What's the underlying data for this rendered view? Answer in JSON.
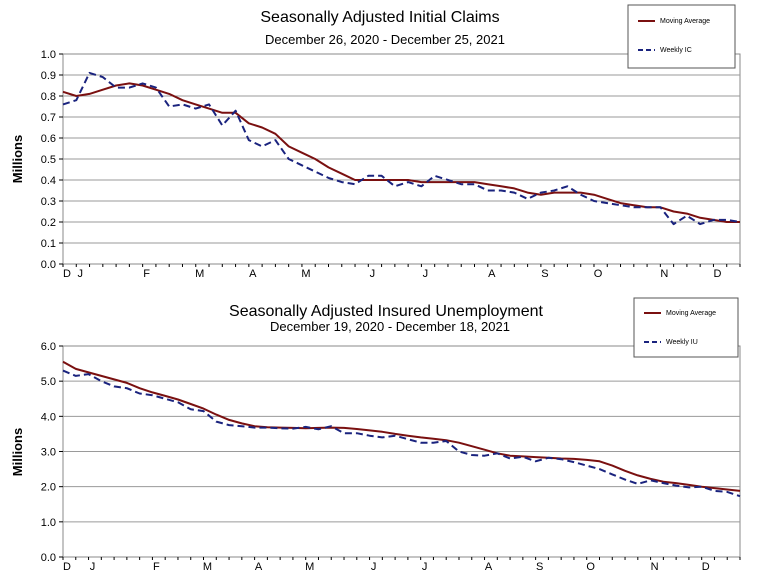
{
  "chart_data": [
    {
      "type": "line",
      "title": "Seasonally Adjusted Initial Claims",
      "subtitle": "December 26, 2020 - December 25, 2021",
      "ylabel": "Millions",
      "xlabel": "",
      "ylim": [
        0,
        1.0
      ],
      "yticks": [
        "0.0",
        "0.1",
        "0.2",
        "0.3",
        "0.4",
        "0.5",
        "0.6",
        "0.7",
        "0.8",
        "0.9",
        "1.0"
      ],
      "xticks": [
        {
          "label": "D",
          "week": 0
        },
        {
          "label": "J",
          "week": 1
        },
        {
          "label": "F",
          "week": 6
        },
        {
          "label": "M",
          "week": 10
        },
        {
          "label": "A",
          "week": 14
        },
        {
          "label": "M",
          "week": 18
        },
        {
          "label": "J",
          "week": 23
        },
        {
          "label": "J",
          "week": 27
        },
        {
          "label": "A",
          "week": 32
        },
        {
          "label": "S",
          "week": 36
        },
        {
          "label": "O",
          "week": 40
        },
        {
          "label": "N",
          "week": 45
        },
        {
          "label": "D",
          "week": 49
        }
      ],
      "grid": true,
      "legend_position": "top-right",
      "series": [
        {
          "name": "Moving Average",
          "color": "#7a1010",
          "style": "solid",
          "values": [
            0.82,
            0.8,
            0.81,
            0.83,
            0.85,
            0.86,
            0.85,
            0.83,
            0.81,
            0.78,
            0.76,
            0.74,
            0.72,
            0.72,
            0.67,
            0.65,
            0.62,
            0.56,
            0.53,
            0.5,
            0.46,
            0.43,
            0.4,
            0.4,
            0.4,
            0.4,
            0.4,
            0.39,
            0.39,
            0.39,
            0.39,
            0.39,
            0.38,
            0.37,
            0.36,
            0.34,
            0.33,
            0.34,
            0.34,
            0.34,
            0.33,
            0.31,
            0.29,
            0.28,
            0.27,
            0.27,
            0.25,
            0.24,
            0.22,
            0.21,
            0.2,
            0.2
          ]
        },
        {
          "name": "Weekly IC",
          "color": "#1a237e",
          "style": "dashed",
          "values": [
            0.76,
            0.78,
            0.91,
            0.89,
            0.84,
            0.84,
            0.86,
            0.84,
            0.75,
            0.76,
            0.74,
            0.76,
            0.66,
            0.73,
            0.59,
            0.56,
            0.59,
            0.5,
            0.47,
            0.44,
            0.41,
            0.39,
            0.38,
            0.42,
            0.42,
            0.37,
            0.39,
            0.37,
            0.42,
            0.4,
            0.38,
            0.38,
            0.35,
            0.35,
            0.34,
            0.31,
            0.34,
            0.35,
            0.37,
            0.33,
            0.3,
            0.29,
            0.28,
            0.27,
            0.27,
            0.27,
            0.19,
            0.23,
            0.19,
            0.21,
            0.21,
            0.2
          ]
        }
      ]
    },
    {
      "type": "line",
      "title": "Seasonally Adjusted Insured Unemployment",
      "subtitle": "December 19, 2020 - December 18, 2021",
      "ylabel": "Millions",
      "xlabel": "",
      "ylim": [
        0,
        6.0
      ],
      "yticks": [
        "0.0",
        "1.0",
        "2.0",
        "3.0",
        "4.0",
        "5.0",
        "6.0"
      ],
      "xticks": [
        {
          "label": "D",
          "week": 0
        },
        {
          "label": "J",
          "week": 2
        },
        {
          "label": "F",
          "week": 7
        },
        {
          "label": "M",
          "week": 11
        },
        {
          "label": "A",
          "week": 15
        },
        {
          "label": "M",
          "week": 19
        },
        {
          "label": "J",
          "week": 24
        },
        {
          "label": "J",
          "week": 28
        },
        {
          "label": "A",
          "week": 33
        },
        {
          "label": "S",
          "week": 37
        },
        {
          "label": "O",
          "week": 41
        },
        {
          "label": "N",
          "week": 46
        },
        {
          "label": "D",
          "week": 50
        }
      ],
      "grid": true,
      "legend_position": "top-right",
      "series": [
        {
          "name": "Moving Average",
          "color": "#7a1010",
          "style": "solid",
          "values": [
            5.55,
            5.35,
            5.25,
            5.15,
            5.05,
            4.95,
            4.8,
            4.68,
            4.58,
            4.48,
            4.35,
            4.22,
            4.05,
            3.9,
            3.8,
            3.72,
            3.69,
            3.68,
            3.67,
            3.66,
            3.67,
            3.68,
            3.67,
            3.64,
            3.6,
            3.56,
            3.5,
            3.45,
            3.4,
            3.36,
            3.32,
            3.25,
            3.15,
            3.05,
            2.95,
            2.88,
            2.86,
            2.84,
            2.82,
            2.8,
            2.79,
            2.76,
            2.72,
            2.6,
            2.45,
            2.32,
            2.22,
            2.14,
            2.1,
            2.05,
            2.0,
            1.96,
            1.92,
            1.88
          ]
        },
        {
          "name": "Weekly IU",
          "color": "#1a237e",
          "style": "dashed",
          "values": [
            5.3,
            5.15,
            5.2,
            5.0,
            4.85,
            4.8,
            4.65,
            4.6,
            4.5,
            4.4,
            4.2,
            4.15,
            3.85,
            3.75,
            3.72,
            3.68,
            3.68,
            3.66,
            3.65,
            3.7,
            3.63,
            3.72,
            3.52,
            3.52,
            3.45,
            3.4,
            3.45,
            3.35,
            3.25,
            3.25,
            3.3,
            3.0,
            2.9,
            2.88,
            2.95,
            2.8,
            2.85,
            2.72,
            2.82,
            2.78,
            2.7,
            2.6,
            2.5,
            2.35,
            2.2,
            2.08,
            2.18,
            2.1,
            2.03,
            1.98,
            2.0,
            1.88,
            1.85,
            1.73
          ]
        }
      ]
    }
  ]
}
